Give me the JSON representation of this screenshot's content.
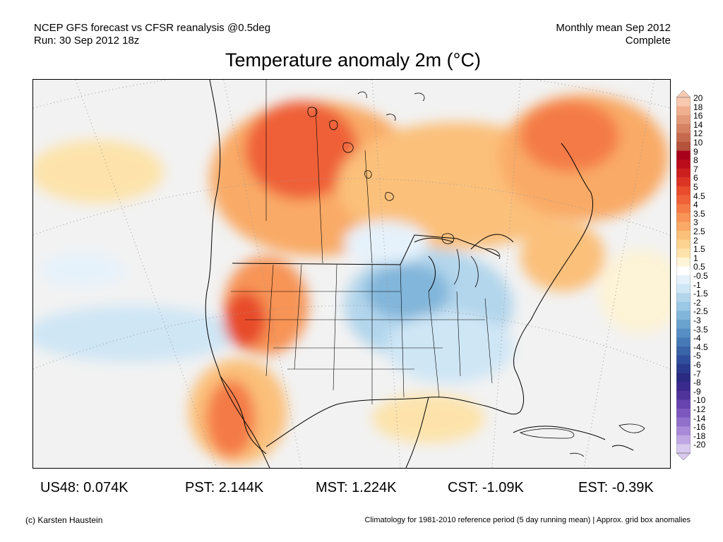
{
  "header": {
    "line1": "NCEP GFS forecast vs CFSR reanalysis @0.5deg",
    "line2": "Run: 30 Sep 2012 18z",
    "right1": "Monthly mean Sep 2012",
    "right2": "Complete"
  },
  "title": "Temperature anomaly 2m (°C)",
  "legend": {
    "labels": [
      "20",
      "18",
      "16",
      "14",
      "12",
      "10",
      "9",
      "8",
      "7",
      "6",
      "5",
      "4.5",
      "4",
      "3.5",
      "3",
      "2.5",
      "2",
      "1.5",
      "1",
      "0.5",
      "-0.5",
      "-1",
      "-1.5",
      "-2",
      "-2.5",
      "-3",
      "-3.5",
      "-4",
      "-4.5",
      "-5",
      "-6",
      "-7",
      "-8",
      "-9",
      "-10",
      "-12",
      "-14",
      "-16",
      "-18",
      "-20"
    ],
    "colors": [
      "#f9c9b0",
      "#f0b090",
      "#e39a78",
      "#d58262",
      "#c56a4e",
      "#b5523b",
      "#a8001c",
      "#bb0c1c",
      "#cc2020",
      "#dc3424",
      "#e84c2c",
      "#ef6138",
      "#f47a46",
      "#f79456",
      "#f9aa66",
      "#fbc07a",
      "#fcd390",
      "#fde3ab",
      "#fdf3d6",
      "#ffffff",
      "#e6f2fb",
      "#cfe6f5",
      "#b3d6ec",
      "#9bc8e4",
      "#82b6da",
      "#6ba3cf",
      "#568fc3",
      "#467ab6",
      "#3a64a8",
      "#304e9b",
      "#2a3a8c",
      "#2a2a80",
      "#3b2a8e",
      "#50349c",
      "#6643ae",
      "#7b57be",
      "#9170cc",
      "#a98ad9",
      "#c0a8e4",
      "#d8c9ef"
    ]
  },
  "map": {
    "ocean_color": "#f2f2f2",
    "warm_light": "#fde3ab",
    "warm_mid": "#f9aa66",
    "warm_strong": "#ef6138",
    "cool_light": "#d6ebf7",
    "cool_mid": "#a9d0ea",
    "cool_strong": "#7fb2d8"
  },
  "stats": [
    {
      "label": "US48: 0.074K"
    },
    {
      "label": "PST: 2.144K"
    },
    {
      "label": "MST: 1.224K"
    },
    {
      "label": "CST: -1.09K"
    },
    {
      "label": "EST: -0.39K"
    }
  ],
  "footer": {
    "credit": "(c) Karsten Haustein",
    "note": "Climatology for 1981-2010 reference period (5 day running mean) | Approx. grid box anomalies"
  }
}
